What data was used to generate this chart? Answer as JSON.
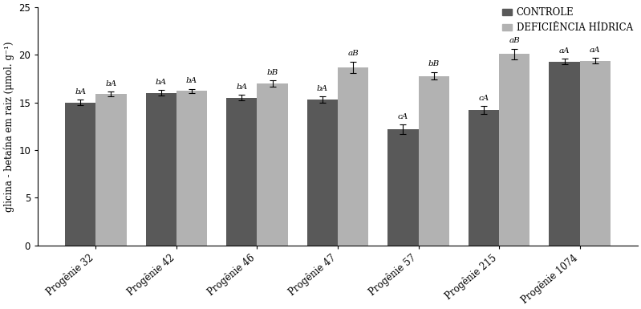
{
  "categories": [
    "Progênie 32",
    "Progênie 42",
    "Progênie 46",
    "Progênie 47",
    "Progênie 57",
    "Progênie 215",
    "Progênie 1074"
  ],
  "controle_values": [
    15.0,
    16.0,
    15.5,
    15.3,
    12.2,
    14.2,
    19.3
  ],
  "deficiencia_values": [
    15.9,
    16.2,
    17.0,
    18.7,
    17.8,
    20.1,
    19.4
  ],
  "controle_errors": [
    0.3,
    0.3,
    0.3,
    0.35,
    0.5,
    0.4,
    0.3
  ],
  "deficiencia_errors": [
    0.25,
    0.25,
    0.35,
    0.6,
    0.4,
    0.55,
    0.3
  ],
  "controle_color": "#595959",
  "deficiencia_color": "#b2b2b2",
  "controle_label": "CONTROLE",
  "deficiencia_label": "DEFICIÊNCIA HÍDRICA",
  "ylabel": "glicina - betaína em raiz (μmol. g⁻¹)",
  "ylim": [
    0,
    25
  ],
  "yticks": [
    0,
    5,
    10,
    15,
    20,
    25
  ],
  "bar_width": 0.38,
  "controle_annotations": [
    "bA",
    "bA",
    "bA",
    "bA",
    "cA",
    "cA",
    "aA"
  ],
  "deficiencia_annotations": [
    "bA",
    "bA",
    "bB",
    "aB",
    "bB",
    "aB",
    "aA"
  ],
  "background_color": "#ffffff",
  "figsize": [
    7.99,
    3.85
  ],
  "dpi": 100
}
